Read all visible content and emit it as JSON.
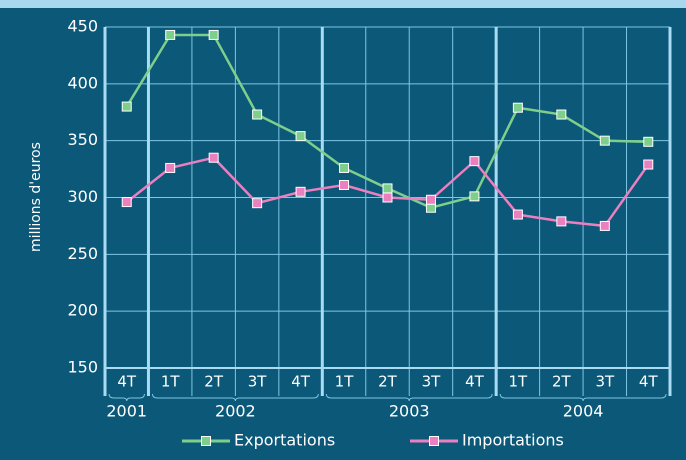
{
  "chart_data": {
    "type": "line",
    "y_label": "millions d'euros",
    "categories": [
      "4T",
      "1T",
      "2T",
      "3T",
      "4T",
      "1T",
      "2T",
      "3T",
      "4T",
      "1T",
      "2T",
      "3T",
      "4T"
    ],
    "years": [
      "2001",
      "2002",
      "2003",
      "2004"
    ],
    "series": [
      {
        "name": "Exportations",
        "color": "#7fcf8c",
        "values": [
          380,
          443,
          443,
          373,
          354,
          326,
          308,
          291,
          301,
          379,
          373,
          350,
          349
        ]
      },
      {
        "name": "Importations",
        "color": "#ec7fbf",
        "values": [
          296,
          326,
          335,
          295,
          305,
          311,
          300,
          298,
          332,
          285,
          279,
          275,
          329
        ]
      }
    ],
    "ylim": [
      150,
      450
    ],
    "yticks": [
      150,
      200,
      250,
      300,
      350,
      400,
      450
    ],
    "grid": true
  }
}
